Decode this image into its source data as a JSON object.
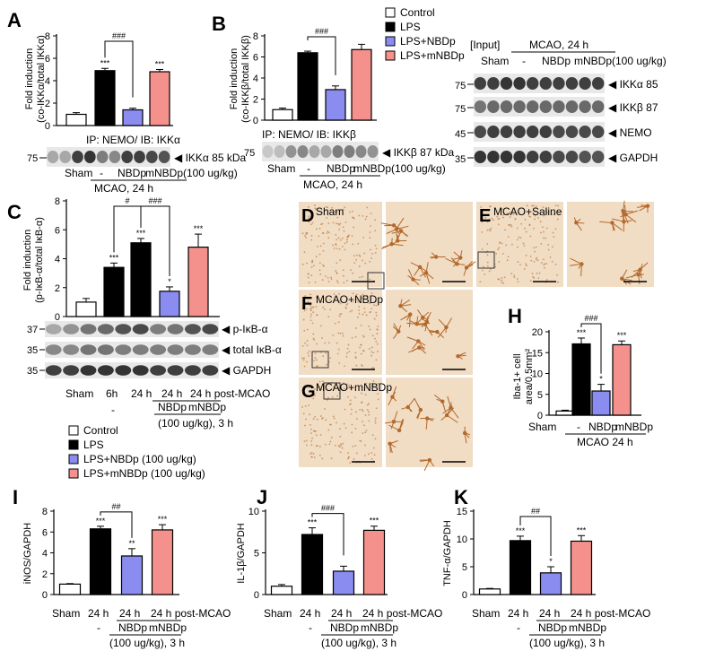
{
  "colors": {
    "control": "#ffffff",
    "lps": "#000000",
    "nbdp": "#8a8cf0",
    "mnbdp": "#f4918c",
    "stroke": "#000000",
    "stain_bg": "#f1dcc4",
    "stain_cell": "#b36a2c"
  },
  "legend_top": {
    "items": [
      "Control",
      "LPS",
      "LPS+NBDp",
      "LPS+mNBDp"
    ]
  },
  "legend_c": {
    "items": [
      "Control",
      "LPS",
      "LPS+NBDp (100 ug/kg)",
      "LPS+mNBDp (100 ug/kg)"
    ]
  },
  "chart_data": [
    {
      "id": "A",
      "type": "bar",
      "panel_letter": "A",
      "ylabel": "Fold induction (co-IKKα/total IKKα)",
      "ylim": [
        0,
        8
      ],
      "yticks": [
        0,
        2,
        4,
        6,
        8
      ],
      "categories": [
        "Sham",
        "-",
        "NBDp",
        "mNBDp"
      ],
      "values": [
        1.0,
        4.9,
        1.4,
        4.8
      ],
      "errors": [
        0.15,
        0.2,
        0.15,
        0.2
      ],
      "stars": [
        "",
        "***",
        "",
        "***"
      ],
      "bracket": {
        "from": 1,
        "to": 2,
        "label": "###"
      },
      "blot_title": "IP: NEMO/ IB: IKKα",
      "blot_rows": [
        {
          "label": "IKKα 85 kDa",
          "mw": "75"
        }
      ],
      "xlabels": {
        "line1": [
          "Sham",
          "-",
          "NBDp",
          "mNBDp(100  ug/kg)"
        ],
        "line2": "MCAO, 24 h"
      }
    },
    {
      "id": "B",
      "type": "bar",
      "panel_letter": "B",
      "ylabel": "Fold induction (co-IKKβ/total IKKβ)",
      "ylim": [
        0,
        8
      ],
      "yticks": [
        0,
        2,
        4,
        6,
        8
      ],
      "categories": [
        "Sham",
        "-",
        "NBDp",
        "mNBDp"
      ],
      "values": [
        1.0,
        6.4,
        2.9,
        6.7
      ],
      "errors": [
        0.15,
        0.15,
        0.35,
        0.5
      ],
      "stars": [
        "",
        "",
        "",
        ""
      ],
      "bracket": {
        "from": 1,
        "to": 2,
        "label": "###"
      },
      "blot_title": "IP: NEMO/ IB: IKKβ",
      "blot_rows": [
        {
          "label": "IKKβ 87 kDa",
          "mw": "75"
        }
      ],
      "xlabels": {
        "line1": [
          "Sham",
          "-",
          "NBDp",
          "mNBDp(100  ug/kg)"
        ],
        "line2": "MCAO, 24 h"
      }
    },
    {
      "id": "C",
      "type": "bar",
      "panel_letter": "C",
      "ylabel": "Fold induction (p-IκB-α/total IκB-α)",
      "ylim": [
        0,
        8
      ],
      "yticks": [
        0,
        2,
        4,
        6,
        8
      ],
      "categories": [
        "Sham",
        "6h",
        "24 h",
        "24 h NBDp",
        "24 h mNBDp"
      ],
      "values": [
        1.0,
        3.4,
        5.1,
        1.75,
        4.8
      ],
      "errors": [
        0.25,
        0.3,
        0.3,
        0.3,
        0.9
      ],
      "stars": [
        "",
        "***",
        "***",
        "*",
        "***"
      ],
      "brackets": [
        {
          "from": 1,
          "to": 2,
          "label": "#"
        },
        {
          "from": 2,
          "to": 3,
          "label": "###"
        }
      ],
      "blot_rows": [
        {
          "label": "p-IκB-α",
          "mw": "37"
        },
        {
          "label": "total IκB-α",
          "mw": "35"
        },
        {
          "label": "GAPDH",
          "mw": "35"
        }
      ],
      "xlabels": {
        "line1": [
          "Sham",
          "6h",
          "24 h",
          "24 h",
          "24 h post-MCAO"
        ],
        "line2": [
          "-",
          "NBDp",
          "mNBDp"
        ],
        "line3": "(100 ug/kg), 3 h"
      }
    },
    {
      "id": "H",
      "type": "bar",
      "panel_letter": "H",
      "ylabel": "Iba-1+ cell area/0.5mm²",
      "ylim": [
        0,
        20
      ],
      "yticks": [
        0,
        5,
        10,
        15,
        20
      ],
      "categories": [
        "Sham",
        "-",
        "NBDp",
        "mNBDp"
      ],
      "values": [
        1.0,
        17.1,
        5.8,
        16.9
      ],
      "errors": [
        0.2,
        1.4,
        1.6,
        0.9
      ],
      "stars": [
        "",
        "***",
        "*",
        "***"
      ],
      "bracket": {
        "from": 1,
        "to": 2,
        "label": "###"
      },
      "xlabels": {
        "line1": [
          "Sham",
          "-",
          "NBDp",
          "mNBDp"
        ],
        "line2": "MCAO  24 h"
      }
    },
    {
      "id": "I",
      "type": "bar",
      "panel_letter": "I",
      "ylabel": "iNOS/GAPDH",
      "ylim": [
        0,
        8
      ],
      "yticks": [
        0,
        2,
        4,
        6,
        8
      ],
      "categories": [
        "Sham",
        "24 h",
        "24 h NBDp",
        "24 h mNBDp"
      ],
      "values": [
        1.0,
        6.3,
        3.7,
        6.2
      ],
      "errors": [
        0.05,
        0.25,
        0.7,
        0.5
      ],
      "stars": [
        "",
        "***",
        "**",
        "***"
      ],
      "bracket": {
        "from": 1,
        "to": 2,
        "label": "##"
      },
      "xlabels": {
        "line1": [
          "Sham",
          "24 h",
          "24 h",
          "24 h post-MCAO"
        ],
        "line2": [
          "-",
          "NBDp",
          "mNBDp"
        ],
        "line3": "(100 ug/kg), 3 h"
      }
    },
    {
      "id": "J",
      "type": "bar",
      "panel_letter": "J",
      "ylabel": "IL-1β/GAPDH",
      "ylim": [
        0,
        10
      ],
      "yticks": [
        0,
        5,
        10
      ],
      "categories": [
        "Sham",
        "24 h",
        "24 h NBDp",
        "24 h mNBDp"
      ],
      "values": [
        1.0,
        7.2,
        2.8,
        7.7
      ],
      "errors": [
        0.2,
        0.8,
        0.6,
        0.5
      ],
      "stars": [
        "",
        "***",
        "",
        "***"
      ],
      "bracket": {
        "from": 1,
        "to": 2,
        "label": "###"
      },
      "xlabels": {
        "line1": [
          "Sham",
          "24 h",
          "24 h",
          "24 h post-MCAO"
        ],
        "line2": [
          "-",
          "NBDp",
          "mNBDp"
        ],
        "line3": "(100 ug/kg), 3 h"
      }
    },
    {
      "id": "K",
      "type": "bar",
      "panel_letter": "K",
      "ylabel": "TNF-α/GAPDH",
      "ylim": [
        0,
        15
      ],
      "yticks": [
        0,
        5,
        10,
        15
      ],
      "categories": [
        "Sham",
        "24 h",
        "24 h NBDp",
        "24 h mNBDp"
      ],
      "values": [
        1.0,
        9.7,
        3.9,
        9.6
      ],
      "errors": [
        0.1,
        0.8,
        1.1,
        1.0
      ],
      "stars": [
        "",
        "***",
        "*",
        "***"
      ],
      "bracket": {
        "from": 1,
        "to": 2,
        "label": "##"
      },
      "xlabels": {
        "line1": [
          "Sham",
          "24 h",
          "24 h",
          "24 h post-MCAO"
        ],
        "line2": [
          "-",
          "NBDp",
          "mNBDp"
        ],
        "line3": "(100 ug/kg), 3 h"
      }
    }
  ],
  "input_blot": {
    "title": "[Input]",
    "header": "MCAO, 24 h",
    "lanes": [
      "Sham",
      "-",
      "NBDp",
      "mNBDp(100  ug/kg)"
    ],
    "rows": [
      {
        "label": "IKKα 85",
        "mw": "75"
      },
      {
        "label": "IKKβ 87",
        "mw": "75"
      },
      {
        "label": "NEMO",
        "mw": "45"
      },
      {
        "label": "GAPDH",
        "mw": "35"
      }
    ]
  },
  "micrographs": [
    {
      "letter": "D",
      "label": "Sham"
    },
    {
      "letter": "E",
      "label": "MCAO+Saline"
    },
    {
      "letter": "F",
      "label": "MCAO+NBDp"
    },
    {
      "letter": "G",
      "label": "MCAO+mNBDp"
    }
  ]
}
